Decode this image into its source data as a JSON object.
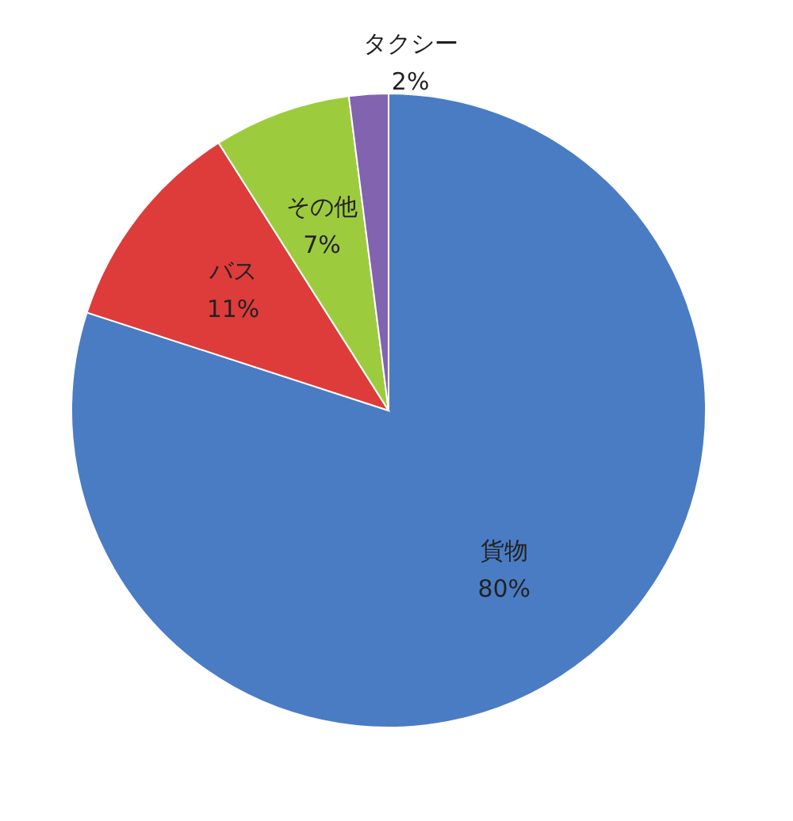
{
  "chart_data": {
    "type": "pie",
    "categories": [
      "貨物",
      "バス",
      "その他",
      "タクシー"
    ],
    "values": [
      80,
      11,
      7,
      2
    ],
    "value_labels": [
      "80%",
      "11%",
      "7%",
      "2%"
    ],
    "colors": [
      "#4a7cc4",
      "#de3b3b",
      "#9dcb3e",
      "#8163b0"
    ],
    "legend": false
  }
}
